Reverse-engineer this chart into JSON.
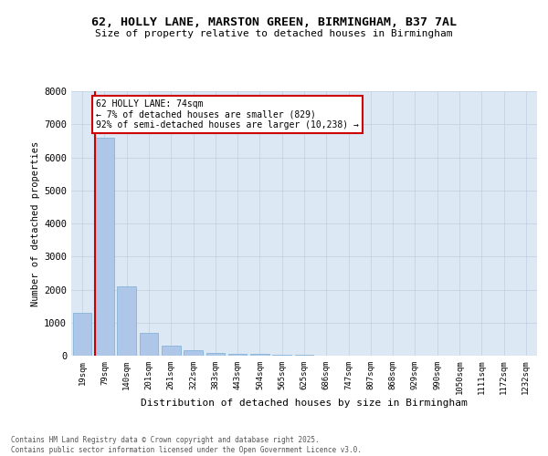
{
  "title_line1": "62, HOLLY LANE, MARSTON GREEN, BIRMINGHAM, B37 7AL",
  "title_line2": "Size of property relative to detached houses in Birmingham",
  "xlabel": "Distribution of detached houses by size in Birmingham",
  "ylabel": "Number of detached properties",
  "categories": [
    "19sqm",
    "79sqm",
    "140sqm",
    "201sqm",
    "261sqm",
    "322sqm",
    "383sqm",
    "443sqm",
    "504sqm",
    "565sqm",
    "625sqm",
    "686sqm",
    "747sqm",
    "807sqm",
    "868sqm",
    "929sqm",
    "990sqm",
    "1050sqm",
    "1111sqm",
    "1172sqm",
    "1232sqm"
  ],
  "values": [
    1300,
    6600,
    2100,
    680,
    300,
    155,
    90,
    55,
    45,
    35,
    20,
    10,
    8,
    5,
    4,
    3,
    2,
    2,
    1,
    1,
    1
  ],
  "bar_color": "#aec6e8",
  "bar_edge_color": "#7aafd4",
  "marker_line_color": "#cc0000",
  "annotation_text": "62 HOLLY LANE: 74sqm\n← 7% of detached houses are smaller (829)\n92% of semi-detached houses are larger (10,238) →",
  "annotation_box_color": "#cc0000",
  "ylim": [
    0,
    8000
  ],
  "yticks": [
    0,
    1000,
    2000,
    3000,
    4000,
    5000,
    6000,
    7000,
    8000
  ],
  "background_color": "#ffffff",
  "plot_bg_color": "#dde8f5",
  "grid_color": "#c0cfe0",
  "footer_line1": "Contains HM Land Registry data © Crown copyright and database right 2025.",
  "footer_line2": "Contains public sector information licensed under the Open Government Licence v3.0."
}
